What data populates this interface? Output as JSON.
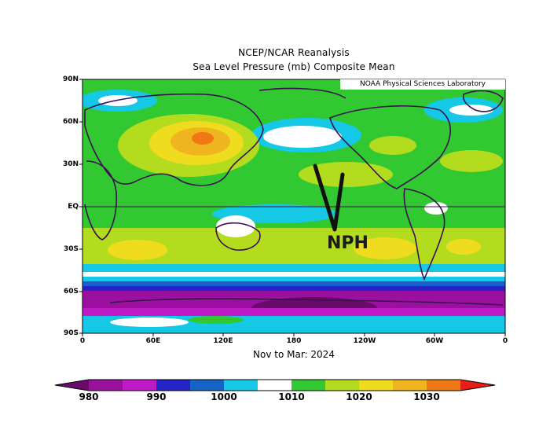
{
  "title_line1": "NCEP/NCAR Reanalysis",
  "title_line2": "Sea Level Pressure (mb) Composite Mean",
  "credit": "NOAA Physical Sciences Laboratory",
  "period_label": "Nov to Mar: 2024",
  "annotation": "NPH",
  "lat_labels": [
    "90N",
    "60N",
    "30N",
    "EQ",
    "30S",
    "60S",
    "90S"
  ],
  "lon_labels": [
    "0",
    "60E",
    "120E",
    "180",
    "120W",
    "60W",
    "0"
  ],
  "colorbar": {
    "labels": [
      "980",
      "990",
      "1000",
      "1010",
      "1020",
      "1030"
    ],
    "colors": [
      "#6a0a6a",
      "#9c10a0",
      "#c01ac8",
      "#2424c8",
      "#1464c8",
      "#14c8e6",
      "#ffffff",
      "#32c832",
      "#b4dc1e",
      "#f0dc1e",
      "#f0b41e",
      "#f07814",
      "#e61e14"
    ]
  }
}
